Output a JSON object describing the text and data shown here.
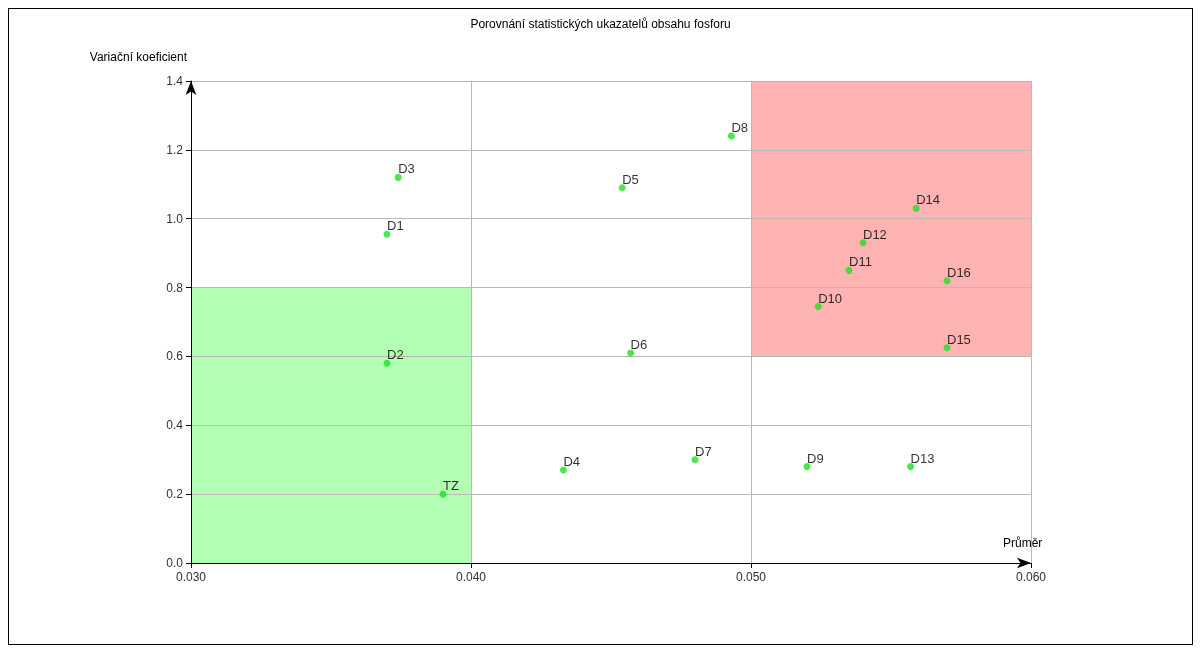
{
  "chart_data": {
    "type": "scatter",
    "title": "Porovnání statistických ukazatelů obsahu fosforu",
    "xlabel": "Průměr",
    "ylabel": "Variační koeficient",
    "x": [
      0.0374,
      0.037,
      0.037,
      0.039,
      0.0433,
      0.0454,
      0.0457,
      0.048,
      0.0493,
      0.052,
      0.0524,
      0.0535,
      0.054,
      0.0557,
      0.0559,
      0.057,
      0.057
    ],
    "series": [
      {
        "type": "area",
        "color": "#b3ffb3",
        "x": [
          0.03,
          0.04
        ],
        "values": [
          null,
          null
        ],
        "lower": [
          0,
          0
        ],
        "upper": [
          0.8,
          0.8
        ]
      },
      {
        "type": "area",
        "color": "#ffb3b3",
        "x": [
          0.05,
          0.06
        ],
        "values": [
          null,
          null
        ],
        "lower": [
          0.6,
          0.6
        ],
        "upper": [
          1.4,
          1.4
        ]
      },
      {
        "color": "#22e022",
        "values": [
          1.12,
          0.955,
          0.58,
          0.2,
          0.27,
          1.09,
          0.61,
          0.3,
          1.24,
          0.28,
          0.745,
          0.85,
          0.93,
          0.28,
          1.03,
          0.625,
          0.82
        ]
      }
    ],
    "annotations": [
      {
        "text": "D3",
        "x": 0.0374,
        "y": 1.12
      },
      {
        "text": "D1",
        "x": 0.037,
        "y": 0.955
      },
      {
        "text": "D2",
        "x": 0.037,
        "y": 0.58
      },
      {
        "text": "TZ",
        "x": 0.039,
        "y": 0.2
      },
      {
        "text": "D4",
        "x": 0.0433,
        "y": 0.27
      },
      {
        "text": "D5",
        "x": 0.0454,
        "y": 1.09
      },
      {
        "text": "D6",
        "x": 0.0457,
        "y": 0.61
      },
      {
        "text": "D7",
        "x": 0.048,
        "y": 0.3
      },
      {
        "text": "D8",
        "x": 0.0493,
        "y": 1.24
      },
      {
        "text": "D9",
        "x": 0.052,
        "y": 0.28
      },
      {
        "text": "D10",
        "x": 0.0524,
        "y": 0.745
      },
      {
        "text": "D11",
        "x": 0.0535,
        "y": 0.85
      },
      {
        "text": "D12",
        "x": 0.054,
        "y": 0.93
      },
      {
        "text": "D13",
        "x": 0.0557,
        "y": 0.28
      },
      {
        "text": "D14",
        "x": 0.0559,
        "y": 1.03
      },
      {
        "text": "D15",
        "x": 0.057,
        "y": 0.625
      },
      {
        "text": "D16",
        "x": 0.057,
        "y": 0.82
      }
    ],
    "xlim": [
      0.03,
      0.06
    ],
    "xticks": [
      {
        "value": 0.03,
        "label": "0.030"
      },
      {
        "value": 0.04,
        "label": "0.040"
      },
      {
        "value": 0.05,
        "label": "0.050"
      },
      {
        "value": 0.06,
        "label": "0.060"
      }
    ],
    "ylim": [
      0,
      1.4
    ],
    "yticks": [
      {
        "value": 0,
        "label": "0.0"
      },
      {
        "value": 0.2,
        "label": "0.2"
      },
      {
        "value": 0.4,
        "label": "0.4"
      },
      {
        "value": 0.6,
        "label": "0.6"
      },
      {
        "value": 0.8,
        "label": "0.8"
      },
      {
        "value": 1.0,
        "label": "1.0"
      },
      {
        "value": 1.2,
        "label": "1.2"
      },
      {
        "value": 1.4,
        "label": "1.4"
      }
    ],
    "grid": true,
    "marker": "circle"
  }
}
